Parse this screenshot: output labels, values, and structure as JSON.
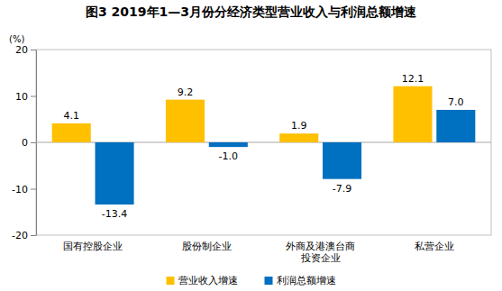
{
  "chart_data": {
    "type": "bar",
    "title": "图3 2019年1—3月份分经济类型营业收入与利润总额增速",
    "y_label": "(%)",
    "categories": [
      "国有控股企业",
      "股份制企业",
      "外商及港澳台商投资企业",
      "私营企业"
    ],
    "series": [
      {
        "name": "营业收入增速",
        "color": "#FFC000",
        "values": [
          4.1,
          9.2,
          1.9,
          12.1
        ]
      },
      {
        "name": "利润总额增速",
        "color": "#0070C0",
        "values": [
          -13.4,
          -1.0,
          -7.9,
          7.0
        ],
        "value_labels": [
          "-13.4",
          "-1.0",
          "-7.9",
          "7.0"
        ]
      }
    ],
    "ylim": [
      -20,
      20
    ],
    "yticks": [
      -20,
      -10,
      0,
      10,
      20
    ],
    "grid": false,
    "legend": "bottom",
    "data_labels": true
  }
}
